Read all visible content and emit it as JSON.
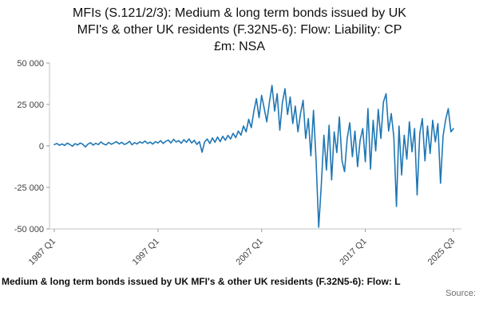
{
  "title_lines": [
    "MFIs (S.121/2/3): Medium & long term bonds issued by UK",
    "MFI's & other UK residents (F.32N5-6): Flow: Liability: CP",
    "£m: NSA"
  ],
  "footer": {
    "series_label": "Medium & long term bonds issued by UK MFI's & other UK residents (F.32N5-6): Flow: L",
    "source_label": "Source:"
  },
  "chart_data": {
    "type": "line",
    "title": "MFIs (S.121/2/3): Medium & long term bonds issued by UK MFI's & other UK residents (F.32N5-6): Flow: Liability: CP £m: NSA",
    "unit": "£m",
    "frequency": "quarterly",
    "x_start": "1987 Q1",
    "x_end": "2025 Q3",
    "x_tick_labels": [
      "1987 Q1",
      "1997 Q1",
      "2007 Q1",
      "2017 Q1",
      "2025 Q3"
    ],
    "x_tick_indices": [
      0,
      40,
      80,
      120,
      154
    ],
    "y_ticks": [
      50000,
      25000,
      0,
      -25000,
      -50000
    ],
    "y_tick_labels": [
      "50 000",
      "25 000",
      "0",
      "-25 000",
      "-50 000"
    ],
    "ylim": [
      -50000,
      50000
    ],
    "grid": false,
    "legend": false,
    "line_color": "#1f77b4",
    "axis_color": "#c6c6c6",
    "tick_mark_color": "#9a9a9a",
    "values": [
      800,
      1500,
      400,
      1200,
      300,
      1700,
      900,
      -200,
      1400,
      600,
      1800,
      1000,
      -600,
      1100,
      1900,
      500,
      1600,
      800,
      2400,
      1200,
      600,
      2100,
      1000,
      1800,
      2600,
      1200,
      2200,
      900,
      1500,
      2800,
      700,
      2000,
      1200,
      2500,
      1700,
      3000,
      1500,
      2300,
      1100,
      2600,
      1800,
      3200,
      1500,
      2800,
      3500,
      1800,
      4000,
      2400,
      3200,
      1600,
      3800,
      2200,
      4200,
      1800,
      3400,
      900,
      2600,
      -3800,
      2400,
      4200,
      1500,
      4800,
      2200,
      5400,
      2600,
      5800,
      3400,
      6400,
      4200,
      7600,
      5000,
      9000,
      6500,
      12000,
      8500,
      16000,
      11000,
      21000,
      28500,
      17000,
      30500,
      22500,
      14500,
      26500,
      36500,
      21000,
      31500,
      9500,
      26000,
      34500,
      19000,
      29500,
      13500,
      24000,
      8500,
      19500,
      27500,
      4500,
      16500,
      -6000,
      21500,
      -8500,
      -49000,
      -24000,
      6500,
      -14500,
      12500,
      -20500,
      8500,
      -4000,
      17500,
      -9000,
      -15500,
      4500,
      14000,
      -6500,
      9000,
      -12500,
      3500,
      10500,
      -9500,
      22500,
      -14000,
      15500,
      -3000,
      22000,
      4500,
      26500,
      31500,
      9000,
      19500,
      5500,
      -36500,
      12000,
      -17500,
      6500,
      -8000,
      14500,
      -3500,
      10500,
      -29500,
      7500,
      16500,
      -9000,
      12000,
      -4500,
      15500,
      2500,
      13500,
      -22500,
      6000,
      16000,
      22500,
      8500,
      10500
    ]
  }
}
